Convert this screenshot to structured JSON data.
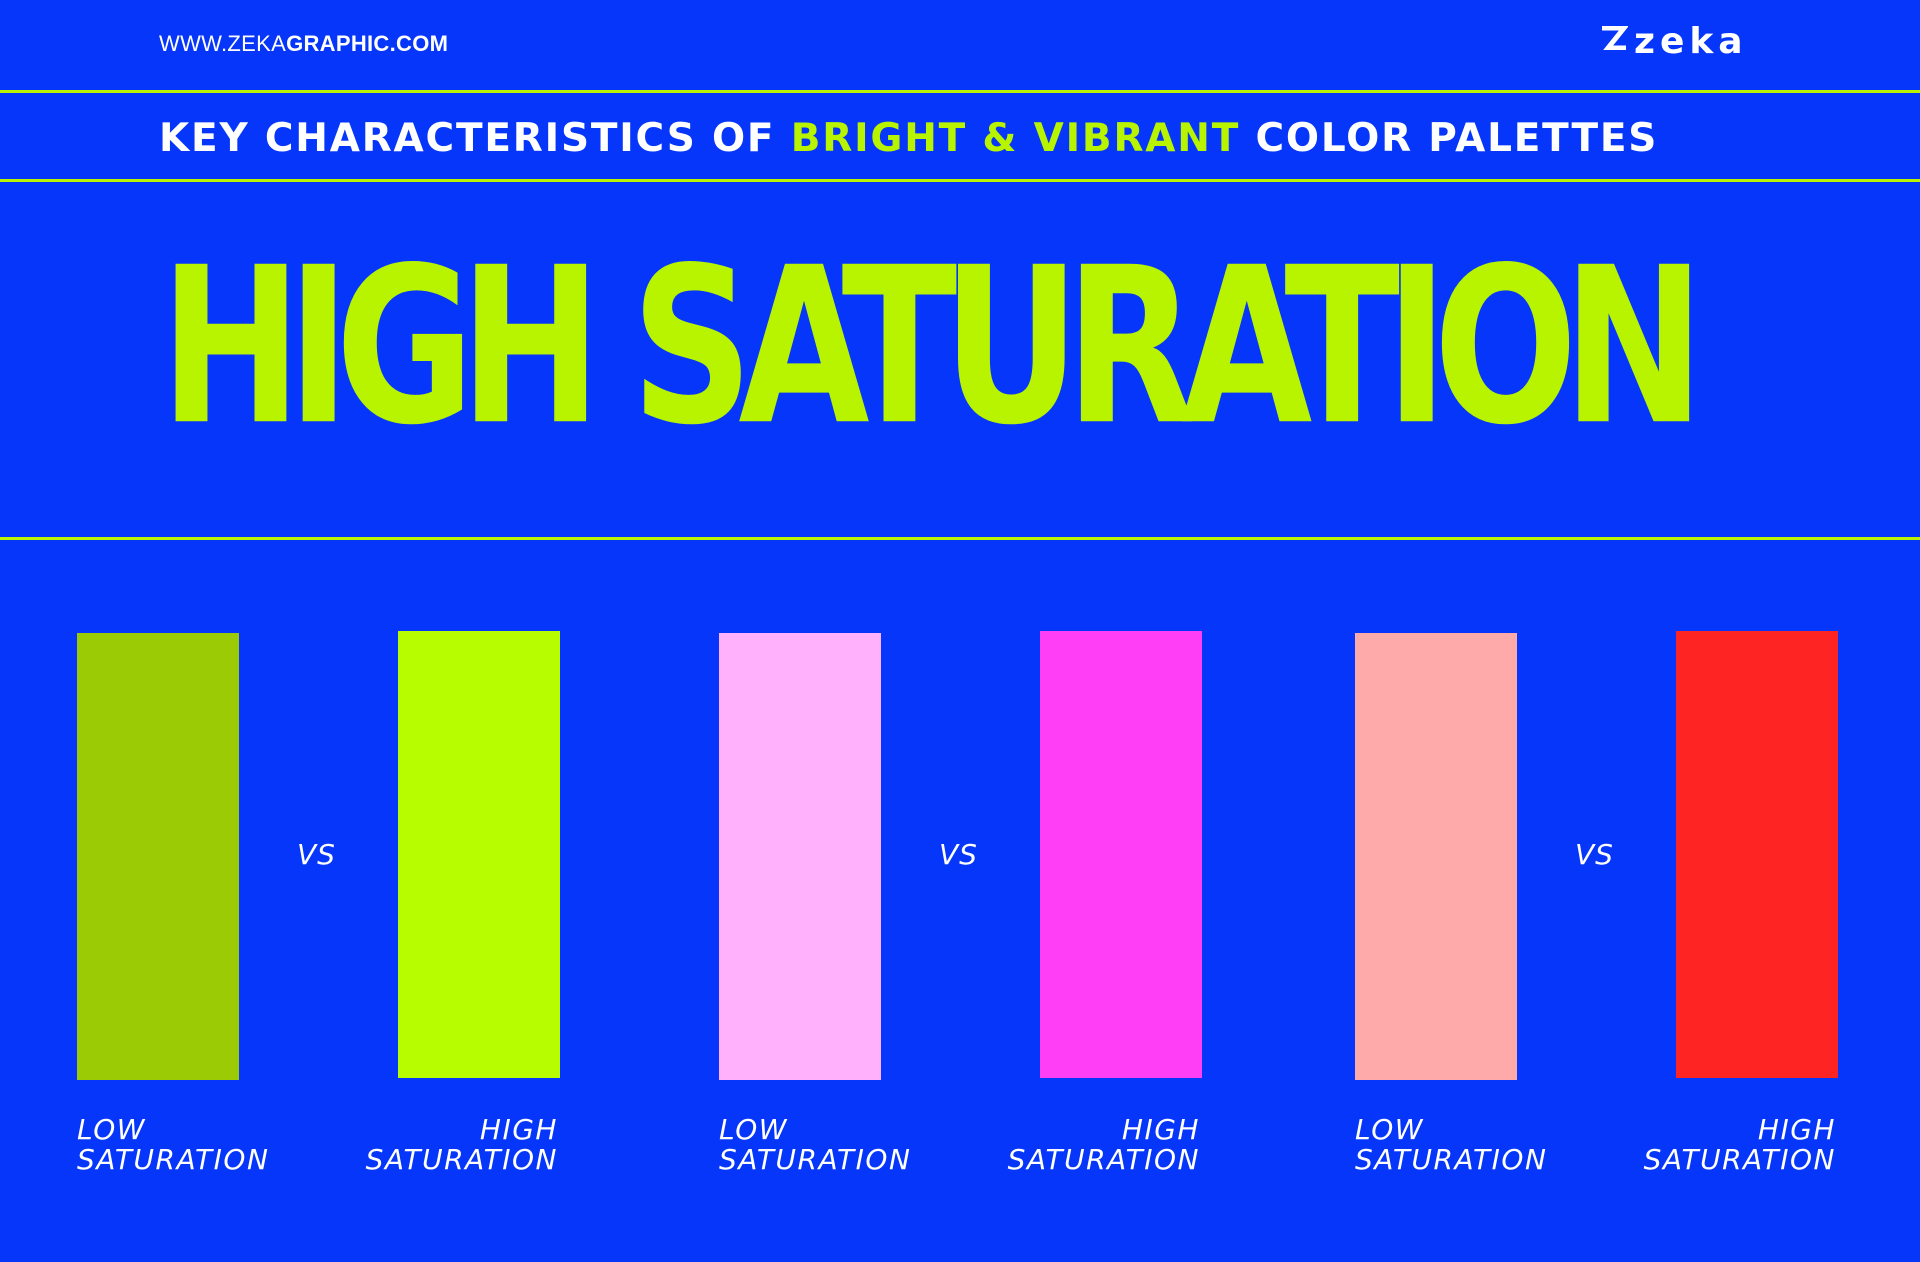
{
  "header": {
    "url_prefix": "WWW.ZEKA",
    "url_suffix": "GRAPHIC.COM",
    "logo_text": "zeka"
  },
  "subtitle": {
    "part1": "KEY CHARACTERISTICS OF ",
    "accent": "BRIGHT & VIBRANT",
    "part2": " COLOR PALETTES"
  },
  "hero_title": "HIGH SATURATION",
  "colors": {
    "background": "#0536fa",
    "accent": "#b8f400",
    "text": "#ffffff"
  },
  "comparisons": [
    {
      "vs_label": "VS",
      "low": {
        "color": "#9acb05",
        "line1": "LOW",
        "line2": "SATURATION"
      },
      "high": {
        "color": "#b8fc00",
        "line1": "HIGH",
        "line2": "SATURATION"
      }
    },
    {
      "vs_label": "VS",
      "low": {
        "color": "#ffb1fb",
        "line1": "LOW",
        "line2": "SATURATION"
      },
      "high": {
        "color": "#ff3ef5",
        "line1": "HIGH",
        "line2": "SATURATION"
      }
    },
    {
      "vs_label": "VS",
      "low": {
        "color": "#ffaaaa",
        "line1": "LOW",
        "line2": "SATURATION"
      },
      "high": {
        "color": "#ff2424",
        "line1": "HIGH",
        "line2": "SATURATION"
      }
    }
  ]
}
